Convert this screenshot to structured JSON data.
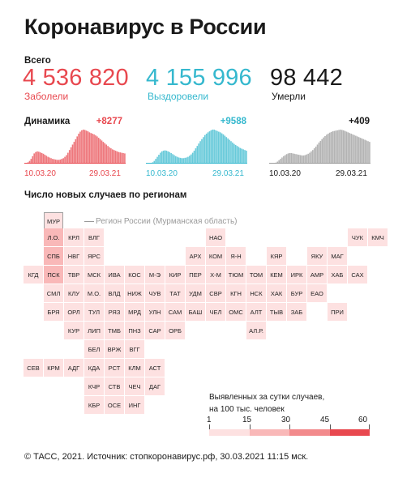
{
  "header": {
    "title": "Коронавирус в России",
    "total_label": "Всего"
  },
  "totals": [
    {
      "value": "4 536 820",
      "label": "Заболели",
      "color": "#e8484f"
    },
    {
      "value": "4 155 996",
      "label": "Выздоровели",
      "color": "#35b8ce"
    },
    {
      "value": "98 442",
      "label": "Умерли",
      "color": "#1a1a1a"
    }
  ],
  "dynamics": {
    "title": "Динамика",
    "panels": [
      {
        "delta": "+8277",
        "start": "10.03.20",
        "end": "29.03.21",
        "color": "#e8484f"
      },
      {
        "delta": "+9588",
        "start": "10.03.20",
        "end": "29.03.21",
        "color": "#35b8ce"
      },
      {
        "delta": "+409",
        "start": "10.03.20",
        "end": "29.03.21",
        "color": "#9a9a9a"
      }
    ]
  },
  "regions": {
    "title": "Число новых случаев по регионам",
    "legend_note": "Регион России (Мурманская область)",
    "legend_text": [
      "Выявленных за сутки случаев,",
      "на 100 тыс. человек"
    ],
    "scale_ticks": [
      "1",
      "15",
      "30",
      "45",
      "60"
    ],
    "scale_colors": [
      "#fde1e1",
      "#f9b8b8",
      "#f28a8c",
      "#e8484f"
    ]
  },
  "chart_data": [
    {
      "type": "area",
      "series": [
        {
          "name": "Заболели",
          "values": [
            1,
            2,
            4,
            8,
            14,
            22,
            30,
            34,
            36,
            35,
            33,
            31,
            29,
            26,
            23,
            20,
            18,
            16,
            14,
            13,
            12,
            11,
            11,
            12,
            14,
            16,
            20,
            25,
            32,
            40,
            48,
            56,
            64,
            72,
            80,
            88,
            94,
            98,
            100,
            99,
            97,
            95,
            92,
            90,
            88,
            86,
            83,
            80,
            76,
            72,
            68,
            64,
            60,
            56,
            52,
            48,
            45,
            42,
            40,
            38,
            36,
            34,
            33,
            32,
            31,
            30
          ]
        }
      ],
      "x_start": "10.03.20",
      "x_end": "29.03.21"
    },
    {
      "type": "area",
      "series": [
        {
          "name": "Выздоровели",
          "values": [
            0,
            0,
            1,
            2,
            4,
            8,
            14,
            20,
            26,
            32,
            36,
            38,
            39,
            38,
            36,
            34,
            31,
            28,
            25,
            22,
            20,
            18,
            17,
            16,
            16,
            17,
            18,
            20,
            23,
            27,
            32,
            38,
            45,
            52,
            59,
            66,
            72,
            78,
            84,
            88,
            92,
            95,
            98,
            100,
            100,
            98,
            96,
            94,
            92,
            89,
            86,
            82,
            78,
            74,
            70,
            66,
            62,
            58,
            55,
            52,
            49,
            46,
            44,
            42,
            40,
            38
          ]
        }
      ],
      "x_start": "10.03.20",
      "x_end": "29.03.21"
    },
    {
      "type": "area",
      "series": [
        {
          "name": "Умерли",
          "values": [
            0,
            0,
            0,
            1,
            3,
            6,
            10,
            14,
            18,
            22,
            25,
            28,
            30,
            31,
            31,
            30,
            29,
            28,
            27,
            26,
            25,
            24,
            24,
            25,
            27,
            29,
            32,
            36,
            40,
            45,
            50,
            56,
            62,
            67,
            72,
            77,
            81,
            85,
            88,
            91,
            93,
            95,
            96,
            97,
            98,
            99,
            100,
            99,
            98,
            96,
            94,
            92,
            90,
            88,
            86,
            84,
            82,
            80,
            78,
            76,
            74,
            72,
            70,
            68,
            66,
            64
          ]
        }
      ],
      "x_start": "10.03.20",
      "x_end": "29.03.21"
    },
    {
      "type": "heatmap",
      "cells": [
        {
          "code": "МУР",
          "col": 0,
          "row": 0,
          "value": 10
        },
        {
          "code": "НАО",
          "col": 8,
          "row": 1,
          "value": 8
        },
        {
          "code": "ЧУК",
          "col": 15,
          "row": 1,
          "value": 10
        },
        {
          "code": "КМЧ",
          "col": 16,
          "row": 1,
          "value": 12
        },
        {
          "code": "Л.О.",
          "col": 0,
          "row": 1,
          "value": 16
        },
        {
          "code": "КРЛ",
          "col": 1,
          "row": 1,
          "value": 14
        },
        {
          "code": "ВЛГ",
          "col": 2,
          "row": 1,
          "value": 8
        },
        {
          "code": "СПБ",
          "col": 0,
          "row": 2,
          "value": 15
        },
        {
          "code": "НВГ",
          "col": 1,
          "row": 2,
          "value": 9
        },
        {
          "code": "ЯРС",
          "col": 2,
          "row": 2,
          "value": 6
        },
        {
          "code": "АРХ",
          "col": 7,
          "row": 2,
          "value": 8
        },
        {
          "code": "КОМ",
          "col": 8,
          "row": 2,
          "value": 10
        },
        {
          "code": "Я-Н",
          "col": 9,
          "row": 2,
          "value": 8
        },
        {
          "code": "КЯР",
          "col": 11,
          "row": 2,
          "value": 7
        },
        {
          "code": "ЯКУ",
          "col": 13,
          "row": 2,
          "value": 7
        },
        {
          "code": "МАГ",
          "col": 14,
          "row": 2,
          "value": 10
        },
        {
          "code": "КГД",
          "col": -1,
          "row": 3,
          "value": 6
        },
        {
          "code": "ПСК",
          "col": 0,
          "row": 3,
          "value": 15
        },
        {
          "code": "ТВР",
          "col": 1,
          "row": 3,
          "value": 11
        },
        {
          "code": "МСК",
          "col": 2,
          "row": 3,
          "value": 8
        },
        {
          "code": "ИВА",
          "col": 3,
          "row": 3,
          "value": 7
        },
        {
          "code": "КОС",
          "col": 4,
          "row": 3,
          "value": 7
        },
        {
          "code": "М-Э",
          "col": 5,
          "row": 3,
          "value": 6
        },
        {
          "code": "КИР",
          "col": 6,
          "row": 3,
          "value": 8
        },
        {
          "code": "ПЕР",
          "col": 7,
          "row": 3,
          "value": 7
        },
        {
          "code": "Х-М",
          "col": 8,
          "row": 3,
          "value": 6
        },
        {
          "code": "ТЮМ",
          "col": 9,
          "row": 3,
          "value": 6
        },
        {
          "code": "ТОМ",
          "col": 10,
          "row": 3,
          "value": 6
        },
        {
          "code": "КЕМ",
          "col": 11,
          "row": 3,
          "value": 6
        },
        {
          "code": "ИРК",
          "col": 12,
          "row": 3,
          "value": 8
        },
        {
          "code": "АМР",
          "col": 13,
          "row": 3,
          "value": 7
        },
        {
          "code": "ХАБ",
          "col": 14,
          "row": 3,
          "value": 9
        },
        {
          "code": "САХ",
          "col": 15,
          "row": 3,
          "value": 8
        },
        {
          "code": "СМЛ",
          "col": 0,
          "row": 4,
          "value": 8
        },
        {
          "code": "КЛУ",
          "col": 1,
          "row": 4,
          "value": 9
        },
        {
          "code": "М.О.",
          "col": 2,
          "row": 4,
          "value": 7
        },
        {
          "code": "ВЛД",
          "col": 3,
          "row": 4,
          "value": 6
        },
        {
          "code": "НИЖ",
          "col": 4,
          "row": 4,
          "value": 8
        },
        {
          "code": "ЧУВ",
          "col": 5,
          "row": 4,
          "value": 6
        },
        {
          "code": "ТАТ",
          "col": 6,
          "row": 4,
          "value": 5
        },
        {
          "code": "УДМ",
          "col": 7,
          "row": 4,
          "value": 6
        },
        {
          "code": "СВР",
          "col": 8,
          "row": 4,
          "value": 6
        },
        {
          "code": "КГН",
          "col": 9,
          "row": 4,
          "value": 6
        },
        {
          "code": "НСК",
          "col": 10,
          "row": 4,
          "value": 6
        },
        {
          "code": "ХАК",
          "col": 11,
          "row": 4,
          "value": 6
        },
        {
          "code": "БУР",
          "col": 12,
          "row": 4,
          "value": 7
        },
        {
          "code": "ЕАО",
          "col": 13,
          "row": 4,
          "value": 6
        },
        {
          "code": "БРЯ",
          "col": 0,
          "row": 5,
          "value": 7
        },
        {
          "code": "ОРЛ",
          "col": 1,
          "row": 5,
          "value": 8
        },
        {
          "code": "ТУЛ",
          "col": 2,
          "row": 5,
          "value": 6
        },
        {
          "code": "РЯЗ",
          "col": 3,
          "row": 5,
          "value": 7
        },
        {
          "code": "МРД",
          "col": 4,
          "row": 5,
          "value": 6
        },
        {
          "code": "УЛН",
          "col": 5,
          "row": 5,
          "value": 8
        },
        {
          "code": "САМ",
          "col": 6,
          "row": 5,
          "value": 6
        },
        {
          "code": "БАШ",
          "col": 7,
          "row": 5,
          "value": 5
        },
        {
          "code": "ЧЕЛ",
          "col": 8,
          "row": 5,
          "value": 6
        },
        {
          "code": "ОМС",
          "col": 9,
          "row": 5,
          "value": 6
        },
        {
          "code": "АЛТ",
          "col": 10,
          "row": 5,
          "value": 6
        },
        {
          "code": "ТЫВ",
          "col": 11,
          "row": 5,
          "value": 6
        },
        {
          "code": "ЗАБ",
          "col": 12,
          "row": 5,
          "value": 6
        },
        {
          "code": "ПРИ",
          "col": 14,
          "row": 5,
          "value": 6
        },
        {
          "code": "КУР",
          "col": 1,
          "row": 6,
          "value": 7
        },
        {
          "code": "ЛИП",
          "col": 2,
          "row": 6,
          "value": 6
        },
        {
          "code": "ТМБ",
          "col": 3,
          "row": 6,
          "value": 7
        },
        {
          "code": "ПНЗ",
          "col": 4,
          "row": 6,
          "value": 6
        },
        {
          "code": "САР",
          "col": 5,
          "row": 6,
          "value": 6
        },
        {
          "code": "ОРБ",
          "col": 6,
          "row": 6,
          "value": 6
        },
        {
          "code": "АЛ.Р.",
          "col": 10,
          "row": 6,
          "value": 6
        },
        {
          "code": "БЕЛ",
          "col": 2,
          "row": 7,
          "value": 6
        },
        {
          "code": "ВРЖ",
          "col": 3,
          "row": 7,
          "value": 6
        },
        {
          "code": "ВГГ",
          "col": 4,
          "row": 7,
          "value": 6
        },
        {
          "code": "СЕВ",
          "col": -1,
          "row": 8,
          "value": 6
        },
        {
          "code": "КРМ",
          "col": 0,
          "row": 8,
          "value": 6
        },
        {
          "code": "АДГ",
          "col": 1,
          "row": 8,
          "value": 5
        },
        {
          "code": "КДА",
          "col": 2,
          "row": 8,
          "value": 5
        },
        {
          "code": "РСТ",
          "col": 3,
          "row": 8,
          "value": 6
        },
        {
          "code": "КЛМ",
          "col": 4,
          "row": 8,
          "value": 6
        },
        {
          "code": "АСТ",
          "col": 5,
          "row": 8,
          "value": 6
        },
        {
          "code": "КЧР",
          "col": 2,
          "row": 9,
          "value": 6
        },
        {
          "code": "СТВ",
          "col": 3,
          "row": 9,
          "value": 6
        },
        {
          "code": "ЧЕЧ",
          "col": 4,
          "row": 9,
          "value": 5
        },
        {
          "code": "ДАГ",
          "col": 5,
          "row": 9,
          "value": 5
        },
        {
          "code": "КБР",
          "col": 2,
          "row": 10,
          "value": 6
        },
        {
          "code": "ОСЕ",
          "col": 3,
          "row": 10,
          "value": 6
        },
        {
          "code": "ИНГ",
          "col": 4,
          "row": 10,
          "value": 5
        }
      ]
    }
  ],
  "footer": {
    "text": "© ТАСС, 2021. Источник: стопкоронавирус.рф, 30.03.2021 11:15 мск."
  }
}
